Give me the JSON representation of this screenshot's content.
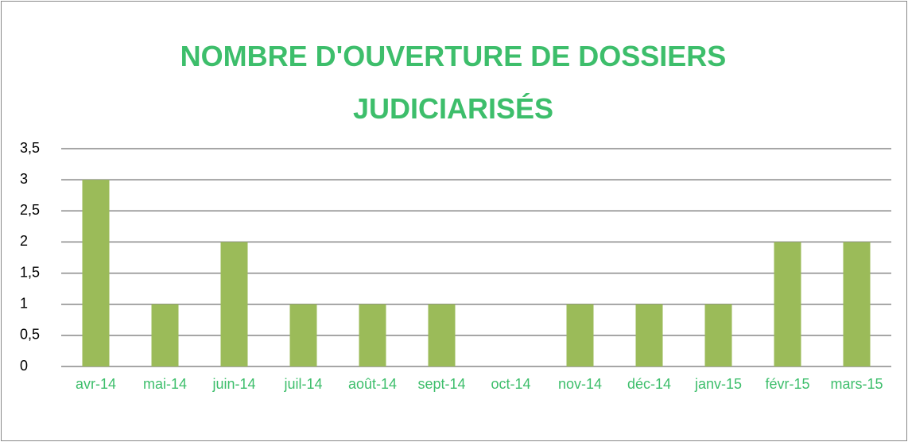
{
  "chart_data": {
    "type": "bar",
    "title": "NOMBRE D'OUVERTURE DE DOSSIERS JUDICIARISÉS",
    "categories": [
      "avr-14",
      "mai-14",
      "juin-14",
      "juil-14",
      "août-14",
      "sept-14",
      "oct-14",
      "nov-14",
      "déc-14",
      "janv-15",
      "févr-15",
      "mars-15"
    ],
    "values": [
      3,
      1,
      2,
      1,
      1,
      1,
      0,
      1,
      1,
      1,
      2,
      2
    ],
    "color": "#9bbb59",
    "ylim": [
      0,
      3.5
    ],
    "yticks": [
      0,
      {
        "value": 0.5,
        "label": "0,5"
      },
      1,
      {
        "value": 1.5,
        "label": "1,5"
      },
      2,
      {
        "value": 2.5,
        "label": "2,5"
      },
      3,
      {
        "value": 3.5,
        "label": "3,5"
      }
    ],
    "grid": true
  }
}
